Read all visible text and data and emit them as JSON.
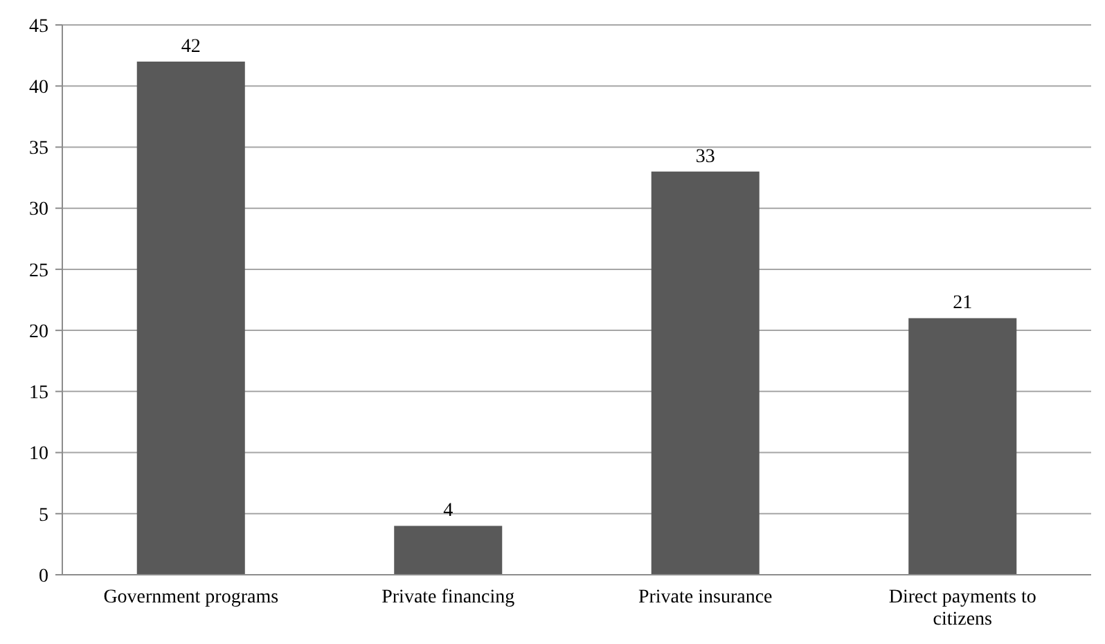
{
  "chart_data": {
    "type": "bar",
    "categories": [
      "Government programs",
      "Private financing",
      "Private insurance",
      "Direct payments to citizens"
    ],
    "values": [
      42,
      4,
      33,
      21
    ],
    "color": "#595959",
    "ylim": [
      0,
      45
    ],
    "yticks": [
      0,
      5,
      10,
      15,
      20,
      25,
      30,
      35,
      40,
      45
    ],
    "grid": "y",
    "data_labels": true
  }
}
